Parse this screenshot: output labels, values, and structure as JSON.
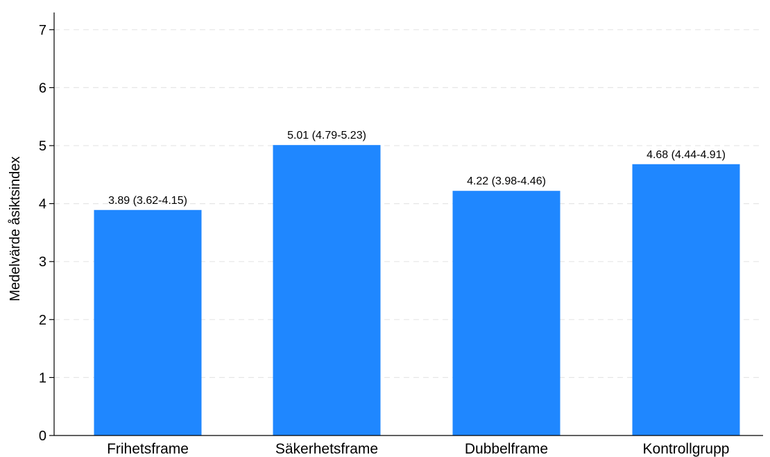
{
  "chart_data": {
    "type": "bar",
    "title": "",
    "xlabel": "",
    "ylabel": "Medelvärde åsiktsindex",
    "ylim": [
      0,
      7
    ],
    "yticks": [
      0,
      1,
      2,
      3,
      4,
      5,
      6,
      7
    ],
    "grid": true,
    "categories": [
      "Frihetsframe",
      "Säkerhetsframe",
      "Dubbelframe",
      "Kontrollgrupp"
    ],
    "values": [
      3.89,
      5.01,
      4.22,
      4.68
    ],
    "ci_low": [
      3.62,
      4.79,
      3.98,
      4.44
    ],
    "ci_high": [
      4.15,
      5.23,
      4.46,
      4.91
    ],
    "data_labels": [
      "3.89 (3.62-4.15)",
      "5.01 (4.79-5.23)",
      "4.22 (3.98-4.46)",
      "4.68 (4.44-4.91)"
    ],
    "bar_color": "#1f87ff",
    "grid_color": "#e6e6e6"
  }
}
